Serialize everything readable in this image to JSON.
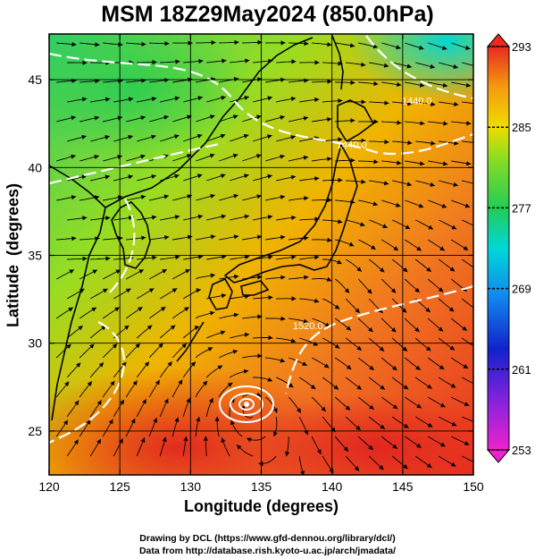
{
  "title": "MSM 18Z29May2024 (850.0hPa)",
  "x_axis": {
    "label": "Longitude (degrees)",
    "range": [
      120,
      150
    ],
    "ticks": [
      120,
      125,
      130,
      135,
      140,
      145,
      150
    ]
  },
  "y_axis": {
    "label": "Latitude  (degrees)",
    "range": [
      22.5,
      47.6
    ],
    "ticks": [
      25,
      30,
      35,
      40,
      45
    ]
  },
  "colorbar": {
    "range": [
      253,
      293
    ],
    "labels": [
      293,
      285,
      277,
      269,
      261,
      253
    ]
  },
  "contour_labels": [
    {
      "text": "1440.0",
      "lon": 141.4,
      "lat": 41.1
    },
    {
      "text": "1440.0",
      "lon": 146.0,
      "lat": 43.6
    },
    {
      "text": "1520.0",
      "lon": 138.3,
      "lat": 30.8
    }
  ],
  "credits": {
    "line1": "Drawing by DCL (https://www.gfd-dennou.org/library/dcl/)",
    "line2": "Data from http://database.rish.kyoto-u.ac.jp/arch/jmadata/"
  }
}
